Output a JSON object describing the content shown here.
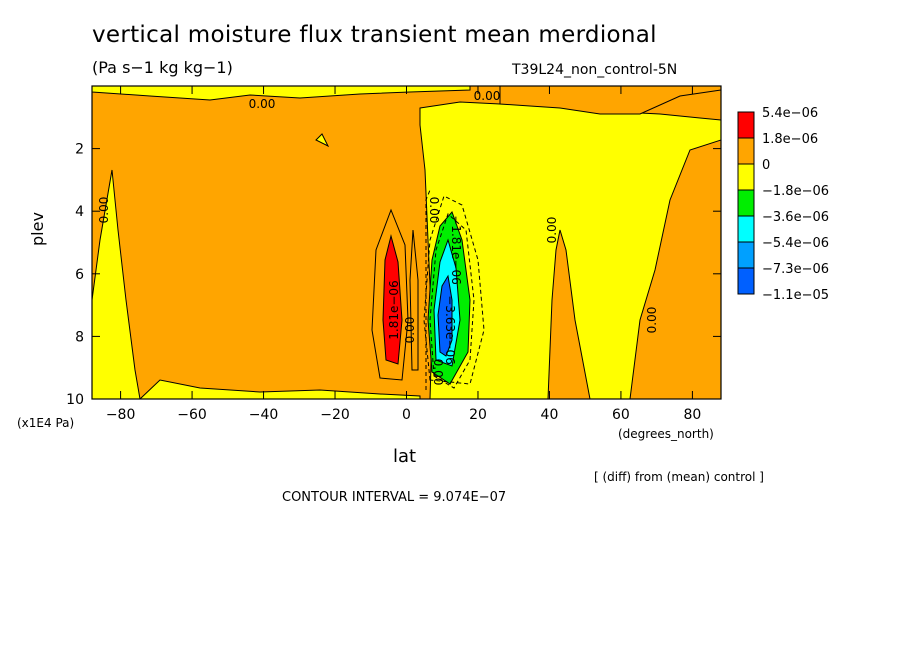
{
  "chart_data": {
    "type": "heatmap",
    "title": "vertical moisture flux transient mean merdional",
    "units": "(Pa s−1 kg kg−1)",
    "run_label": "T39L24_non_control-5N",
    "xlabel": "lat",
    "ylabel": "plev",
    "x_units": "(degrees_north)",
    "y_units": "(x1E4 Pa)",
    "xlim": [
      -88,
      88
    ],
    "ylim": [
      10,
      0
    ],
    "x_ticks": [
      -80,
      -60,
      -40,
      -20,
      0,
      20,
      40,
      60,
      80
    ],
    "y_ticks": [
      2,
      4,
      6,
      8,
      10
    ],
    "x_tick_labels": [
      "−80",
      "−60",
      "−40",
      "−20",
      "0",
      "20",
      "40",
      "60",
      "80"
    ],
    "y_tick_labels": [
      "2",
      "4",
      "6",
      "8",
      "10"
    ],
    "legend": {
      "placement": "right",
      "levels": [
        "5.4e−06",
        "1.8e−06",
        "0",
        "−1.8e−06",
        "−3.6e−06",
        "−5.4e−06",
        "−7.3e−06",
        "−1.1e−05"
      ],
      "colors": [
        "#ff0000",
        "#ffa500",
        "#ffff00",
        "#00ee00",
        "#00ffff",
        "#00a0ff",
        "#0060ff"
      ]
    },
    "contour_labels": [
      "0.00",
      "0.00",
      "0.00",
      "0.00",
      "1.81e−06",
      "0.00",
      "0.00",
      "−1.81e−06",
      "−3.63e−06",
      "0.00",
      "0.00"
    ],
    "annotation": "[ (diff) from (mean) control ]",
    "contour_interval": "CONTOUR INTERVAL = 9.074E−07"
  }
}
